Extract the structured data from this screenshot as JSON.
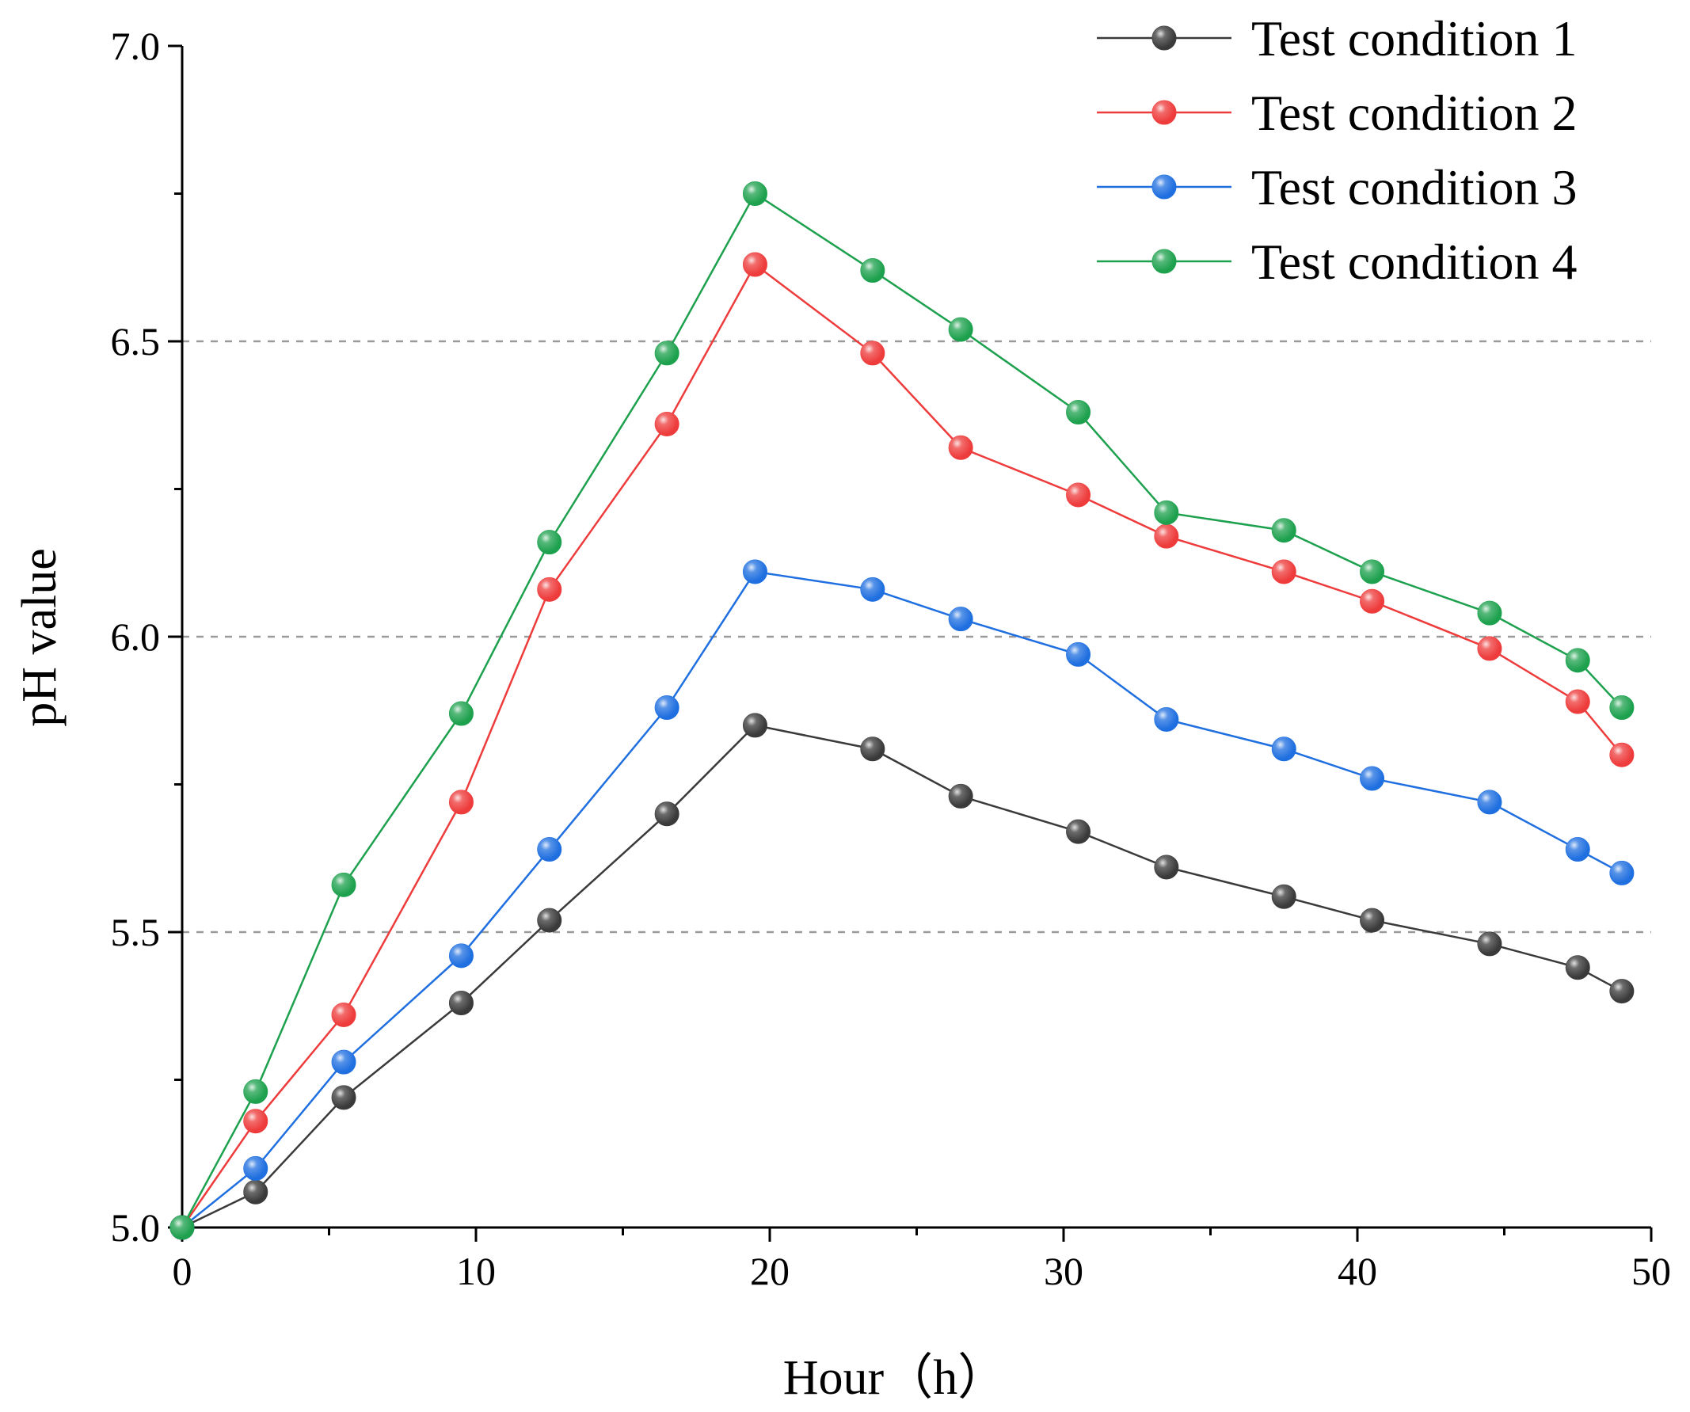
{
  "chart_data": {
    "type": "line",
    "title": "",
    "xlabel": "Hour（h）",
    "ylabel": "pH value",
    "xlim": [
      0,
      50
    ],
    "ylim": [
      5.0,
      7.0
    ],
    "xticks": [
      "0",
      "10",
      "20",
      "30",
      "40",
      "50"
    ],
    "yticks": [
      "5.0",
      "5.5",
      "6.0",
      "6.5",
      "7.0"
    ],
    "grid": "dashed horizontal at 5.5, 6.0, 6.5",
    "legend_position": "top-right",
    "series": [
      {
        "name": "Test condition 1",
        "color": "#3a3a3a",
        "x": [
          0,
          2.5,
          5.5,
          9.5,
          12.5,
          16.5,
          19.5,
          23.5,
          26.5,
          30.5,
          33.5,
          37.5,
          40.5,
          44.5,
          47.5,
          49
        ],
        "y": [
          5.0,
          5.06,
          5.22,
          5.38,
          5.52,
          5.7,
          5.85,
          5.81,
          5.73,
          5.67,
          5.61,
          5.56,
          5.52,
          5.48,
          5.44,
          5.4
        ]
      },
      {
        "name": "Test condition 2",
        "color": "#ee3b3b",
        "x": [
          0,
          2.5,
          5.5,
          9.5,
          12.5,
          16.5,
          19.5,
          23.5,
          26.5,
          30.5,
          33.5,
          37.5,
          40.5,
          44.5,
          47.5,
          49
        ],
        "y": [
          5.0,
          5.18,
          5.36,
          5.72,
          6.08,
          6.36,
          6.63,
          6.48,
          6.32,
          6.24,
          6.17,
          6.11,
          6.06,
          5.98,
          5.89,
          5.8
        ]
      },
      {
        "name": "Test condition 3",
        "color": "#1f6fe0",
        "x": [
          0,
          2.5,
          5.5,
          9.5,
          12.5,
          16.5,
          19.5,
          23.5,
          26.5,
          30.5,
          33.5,
          37.5,
          40.5,
          44.5,
          47.5,
          49
        ],
        "y": [
          5.0,
          5.1,
          5.28,
          5.46,
          5.64,
          5.88,
          6.11,
          6.08,
          6.03,
          5.97,
          5.86,
          5.81,
          5.76,
          5.72,
          5.64,
          5.6
        ]
      },
      {
        "name": "Test condition 4",
        "color": "#1ea14e",
        "x": [
          0,
          2.5,
          5.5,
          9.5,
          12.5,
          16.5,
          19.5,
          23.5,
          26.5,
          30.5,
          33.5,
          37.5,
          40.5,
          44.5,
          47.5,
          49
        ],
        "y": [
          5.0,
          5.23,
          5.58,
          5.87,
          6.16,
          6.48,
          6.75,
          6.62,
          6.52,
          6.38,
          6.21,
          6.18,
          6.11,
          6.04,
          5.96,
          5.88
        ]
      }
    ]
  }
}
